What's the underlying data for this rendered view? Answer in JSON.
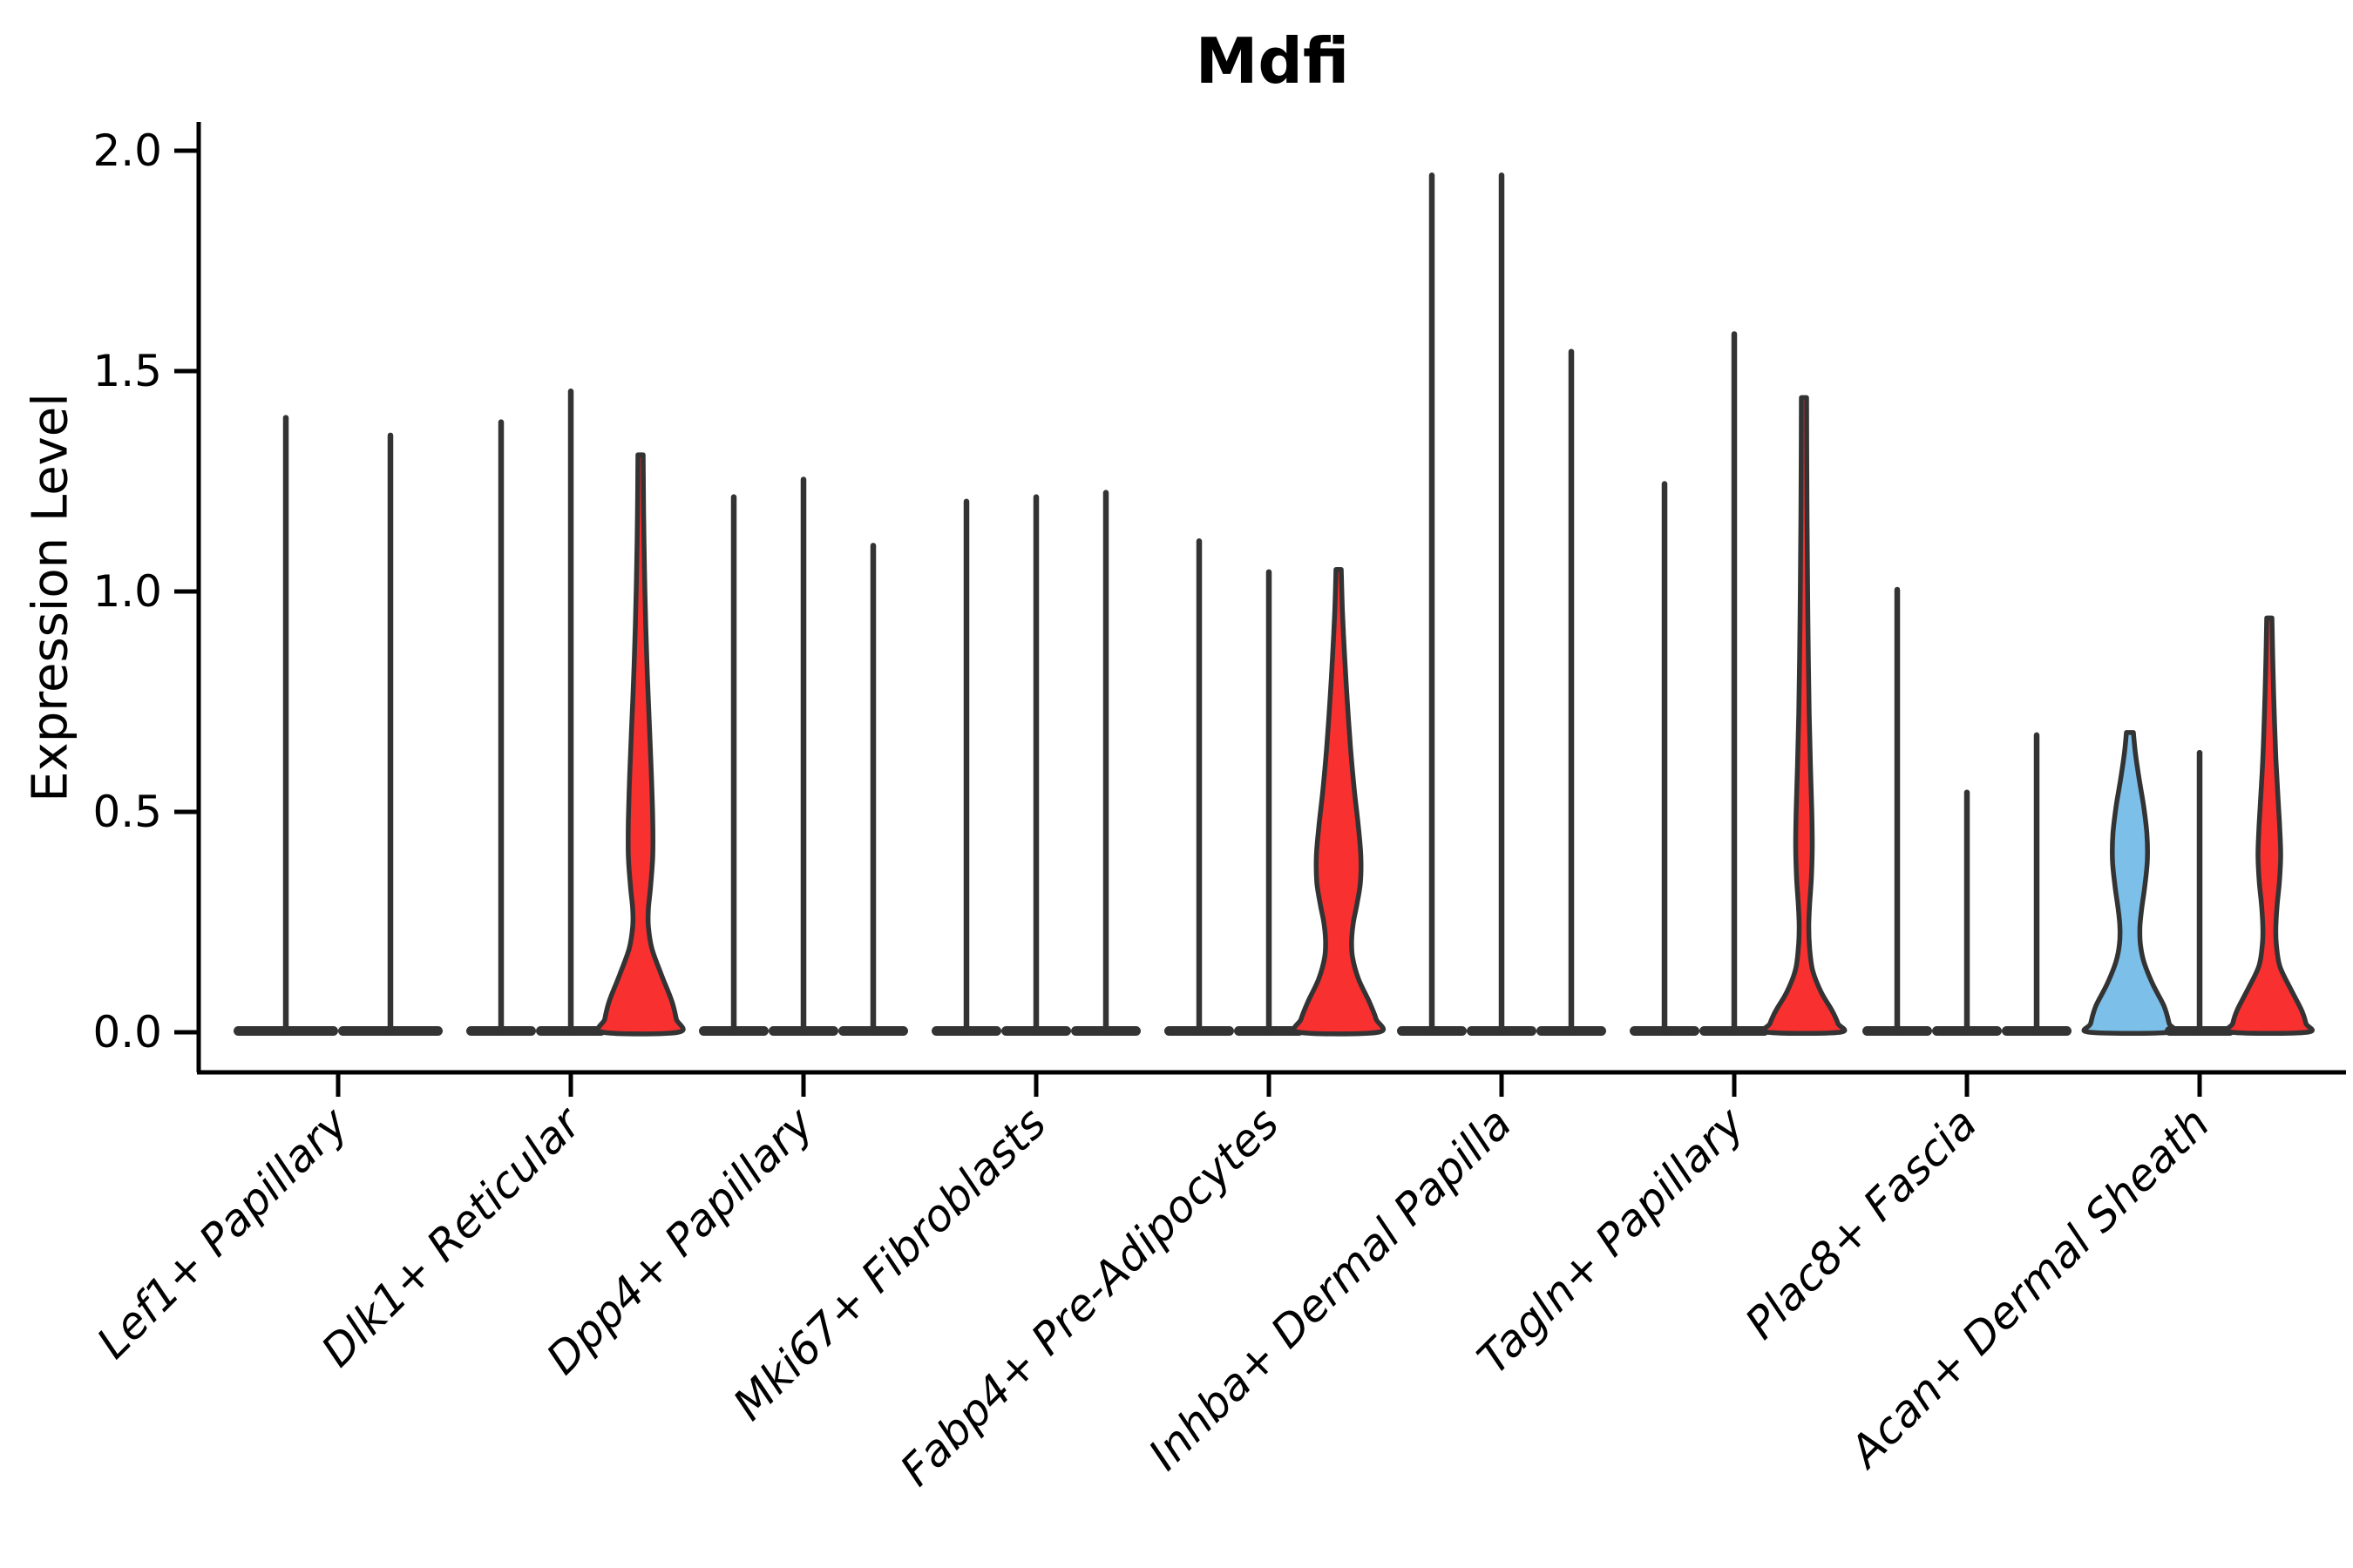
{
  "chart_data": {
    "type": "violin",
    "title": "Mdfi",
    "ylabel": "Expression Level",
    "xlabel": "",
    "ylim": [
      0,
      2.0
    ],
    "yticks": [
      {
        "value": 0.0,
        "label": "0.0"
      },
      {
        "value": 0.5,
        "label": "0.5"
      },
      {
        "value": 1.0,
        "label": "1.0"
      },
      {
        "value": 1.5,
        "label": "1.5"
      },
      {
        "value": 2.0,
        "label": "2.0"
      }
    ],
    "grid": false,
    "legend_position": "none",
    "colors": {
      "red": "#F83030",
      "blue": "#7CBFE9",
      "stroke": "#333333",
      "text": "#000000"
    },
    "categories": [
      {
        "label": "Lef1+ Papillary",
        "violins": [
          {
            "kind": "spike",
            "max": 1.4,
            "base_halfwidth": 60
          },
          {
            "kind": "spike",
            "max": 1.36,
            "base_halfwidth": 60
          }
        ]
      },
      {
        "label": "Dlk1+ Reticular",
        "violins": [
          {
            "kind": "spike",
            "max": 1.39,
            "base_halfwidth": 40
          },
          {
            "kind": "spike",
            "max": 1.46,
            "base_halfwidth": 40
          },
          {
            "kind": "violin",
            "max": 1.31,
            "color": "red",
            "profile": [
              [
                1.31,
                3
              ],
              [
                1.18,
                3.5
              ],
              [
                1.05,
                4.5
              ],
              [
                0.92,
                6
              ],
              [
                0.8,
                8
              ],
              [
                0.68,
                10.5
              ],
              [
                0.58,
                12.5
              ],
              [
                0.48,
                14
              ],
              [
                0.4,
                14
              ],
              [
                0.33,
                11.5
              ],
              [
                0.28,
                9
              ],
              [
                0.24,
                9
              ],
              [
                0.19,
                13
              ],
              [
                0.13,
                24
              ],
              [
                0.07,
                36
              ],
              [
                0.03,
                41
              ],
              [
                0,
                43
              ]
            ]
          }
        ]
      },
      {
        "label": "Dpp4+ Papillary",
        "violins": [
          {
            "kind": "spike",
            "max": 1.22,
            "base_halfwidth": 40
          },
          {
            "kind": "spike",
            "max": 1.26,
            "base_halfwidth": 40
          },
          {
            "kind": "spike",
            "max": 1.11,
            "base_halfwidth": 40
          }
        ]
      },
      {
        "label": "Mki67+ Fibroblasts",
        "violins": [
          {
            "kind": "spike",
            "max": 1.21,
            "base_halfwidth": 40
          },
          {
            "kind": "spike",
            "max": 1.22,
            "base_halfwidth": 40
          },
          {
            "kind": "spike",
            "max": 1.23,
            "base_halfwidth": 40
          }
        ]
      },
      {
        "label": "Fabp4+ Pre-Adipocytes",
        "violins": [
          {
            "kind": "spike",
            "max": 1.12,
            "base_halfwidth": 40
          },
          {
            "kind": "spike",
            "max": 1.05,
            "base_halfwidth": 40
          },
          {
            "kind": "violin",
            "max": 1.05,
            "color": "red",
            "profile": [
              [
                1.05,
                3
              ],
              [
                0.95,
                4.5
              ],
              [
                0.85,
                7
              ],
              [
                0.75,
                10
              ],
              [
                0.65,
                13.5
              ],
              [
                0.55,
                18
              ],
              [
                0.47,
                22.5
              ],
              [
                0.4,
                25.5
              ],
              [
                0.34,
                25
              ],
              [
                0.29,
                21
              ],
              [
                0.25,
                17
              ],
              [
                0.21,
                15
              ],
              [
                0.17,
                16
              ],
              [
                0.12,
                23
              ],
              [
                0.07,
                35
              ],
              [
                0.03,
                43
              ],
              [
                0,
                45
              ]
            ]
          }
        ]
      },
      {
        "label": "Inhba+ Dermal Papilla",
        "violins": [
          {
            "kind": "spike",
            "max": 1.95,
            "base_halfwidth": 40
          },
          {
            "kind": "spike",
            "max": 1.95,
            "base_halfwidth": 40
          },
          {
            "kind": "spike",
            "max": 1.55,
            "base_halfwidth": 40
          }
        ]
      },
      {
        "label": "Tagln+ Papillary",
        "violins": [
          {
            "kind": "spike",
            "max": 1.25,
            "base_halfwidth": 40
          },
          {
            "kind": "spike",
            "max": 1.59,
            "base_halfwidth": 40
          },
          {
            "kind": "violin",
            "max": 1.44,
            "color": "red",
            "profile": [
              [
                1.44,
                3
              ],
              [
                1.3,
                3.2
              ],
              [
                1.15,
                3.6
              ],
              [
                1.0,
                4.2
              ],
              [
                0.85,
                5
              ],
              [
                0.72,
                6
              ],
              [
                0.6,
                7.5
              ],
              [
                0.5,
                9
              ],
              [
                0.42,
                9.5
              ],
              [
                0.35,
                8.5
              ],
              [
                0.29,
                6.5
              ],
              [
                0.24,
                5.5
              ],
              [
                0.19,
                6.5
              ],
              [
                0.14,
                10
              ],
              [
                0.09,
                20
              ],
              [
                0.05,
                32
              ],
              [
                0.02,
                39
              ],
              [
                0,
                41
              ]
            ]
          }
        ]
      },
      {
        "label": "Plac8+ Fascia",
        "violins": [
          {
            "kind": "spike",
            "max": 1.01,
            "base_halfwidth": 40
          },
          {
            "kind": "spike",
            "max": 0.55,
            "base_halfwidth": 40
          },
          {
            "kind": "spike",
            "max": 0.68,
            "base_halfwidth": 40
          }
        ]
      },
      {
        "label": "Acan+ Dermal Sheath",
        "violins": [
          {
            "kind": "violin",
            "max": 0.68,
            "color": "blue",
            "profile": [
              [
                0.68,
                4
              ],
              [
                0.63,
                6.5
              ],
              [
                0.57,
                11
              ],
              [
                0.51,
                16
              ],
              [
                0.45,
                19.5
              ],
              [
                0.39,
                20
              ],
              [
                0.33,
                17
              ],
              [
                0.28,
                13.5
              ],
              [
                0.24,
                11.5
              ],
              [
                0.2,
                12
              ],
              [
                0.16,
                16
              ],
              [
                0.11,
                26
              ],
              [
                0.06,
                39
              ],
              [
                0.02,
                45
              ],
              [
                0,
                46
              ]
            ]
          },
          {
            "kind": "spike",
            "max": 0.64,
            "base_halfwidth": 40
          },
          {
            "kind": "violin",
            "max": 0.94,
            "color": "red",
            "profile": [
              [
                0.94,
                3
              ],
              [
                0.84,
                4
              ],
              [
                0.73,
                5.5
              ],
              [
                0.62,
                7.5
              ],
              [
                0.53,
                10
              ],
              [
                0.46,
                12
              ],
              [
                0.4,
                13
              ],
              [
                0.34,
                11.5
              ],
              [
                0.29,
                9
              ],
              [
                0.24,
                7.5
              ],
              [
                0.2,
                8
              ],
              [
                0.15,
                12
              ],
              [
                0.1,
                24
              ],
              [
                0.05,
                37
              ],
              [
                0.02,
                42
              ],
              [
                0,
                43
              ]
            ]
          }
        ]
      }
    ]
  }
}
